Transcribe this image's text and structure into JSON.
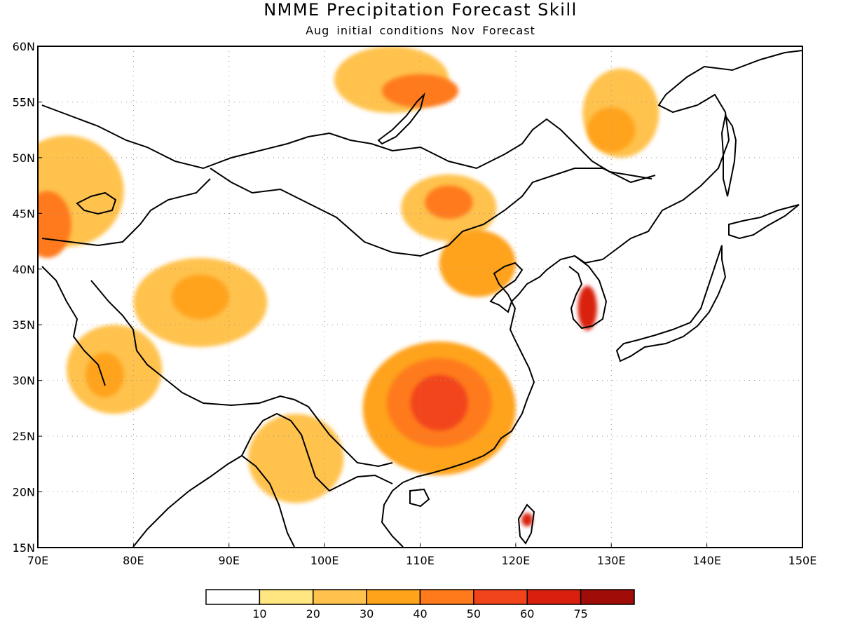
{
  "title": "NMME Precipitation Forecast Skill",
  "subtitle": "Aug initial conditions  Nov Forecast",
  "map": {
    "lon_range": [
      70,
      150
    ],
    "lat_range": [
      15,
      60
    ],
    "lon_labels": [
      "70E",
      "80E",
      "90E",
      "100E",
      "110E",
      "120E",
      "130E",
      "140E",
      "150E"
    ],
    "lat_labels": [
      "60N",
      "55N",
      "50N",
      "45N",
      "40N",
      "35N",
      "30N",
      "25N",
      "20N",
      "15N"
    ],
    "grid": true
  },
  "legend": {
    "colors": [
      "#ffffff",
      "#ffe680",
      "#ffc24d",
      "#ffa31a",
      "#ff7a1a",
      "#f2441a",
      "#d9200f",
      "#a00c07"
    ],
    "labels": [
      "10",
      "20",
      "30",
      "40",
      "50",
      "60",
      "75"
    ]
  },
  "skill_regions": [
    {
      "name": "mongolia-siberia-north",
      "level": 2,
      "center": [
        107,
        57
      ],
      "r": [
        6,
        3
      ]
    },
    {
      "name": "lake-baikal-north",
      "level": 4,
      "center": [
        110,
        56
      ],
      "r": [
        4,
        1.5
      ]
    },
    {
      "name": "northeast-china-north",
      "level": 2,
      "center": [
        131,
        54
      ],
      "r": [
        4,
        4
      ]
    },
    {
      "name": "northeast-china-core",
      "level": 3,
      "center": [
        130,
        52.5
      ],
      "r": [
        2.5,
        2
      ]
    },
    {
      "name": "kazakhstan-west",
      "level": 2,
      "center": [
        73,
        47
      ],
      "r": [
        6,
        5
      ]
    },
    {
      "name": "kazakhstan-core",
      "level": 4,
      "center": [
        71,
        44
      ],
      "r": [
        2.5,
        3
      ]
    },
    {
      "name": "mongolia-central",
      "level": 2,
      "center": [
        113,
        45.5
      ],
      "r": [
        5,
        3
      ]
    },
    {
      "name": "mongolia-core",
      "level": 4,
      "center": [
        113,
        46
      ],
      "r": [
        2.5,
        1.5
      ]
    },
    {
      "name": "north-china",
      "level": 3,
      "center": [
        116,
        40.5
      ],
      "r": [
        4,
        3
      ]
    },
    {
      "name": "tibet-north",
      "level": 2,
      "center": [
        87,
        37
      ],
      "r": [
        7,
        4
      ]
    },
    {
      "name": "tibet-north-core",
      "level": 3,
      "center": [
        87,
        37.5
      ],
      "r": [
        3,
        2
      ]
    },
    {
      "name": "south-china",
      "level": 3,
      "center": [
        112,
        27.5
      ],
      "r": [
        8,
        6
      ]
    },
    {
      "name": "south-china-mid",
      "level": 4,
      "center": [
        112,
        28
      ],
      "r": [
        5.5,
        4
      ]
    },
    {
      "name": "south-china-core",
      "level": 5,
      "center": [
        112,
        28
      ],
      "r": [
        3,
        2.5
      ]
    },
    {
      "name": "korea",
      "level": 6,
      "center": [
        127.5,
        36.5
      ],
      "r": [
        1,
        2
      ]
    },
    {
      "name": "india-north",
      "level": 2,
      "center": [
        78,
        31
      ],
      "r": [
        5,
        4
      ]
    },
    {
      "name": "india-north-core",
      "level": 3,
      "center": [
        77,
        30.5
      ],
      "r": [
        2,
        2
      ]
    },
    {
      "name": "bangladesh-myanmar",
      "level": 2,
      "center": [
        97,
        23
      ],
      "r": [
        5,
        4
      ]
    },
    {
      "name": "taiwan",
      "level": 6,
      "center": [
        121.2,
        17.5
      ],
      "r": [
        0.6,
        0.6
      ]
    }
  ]
}
